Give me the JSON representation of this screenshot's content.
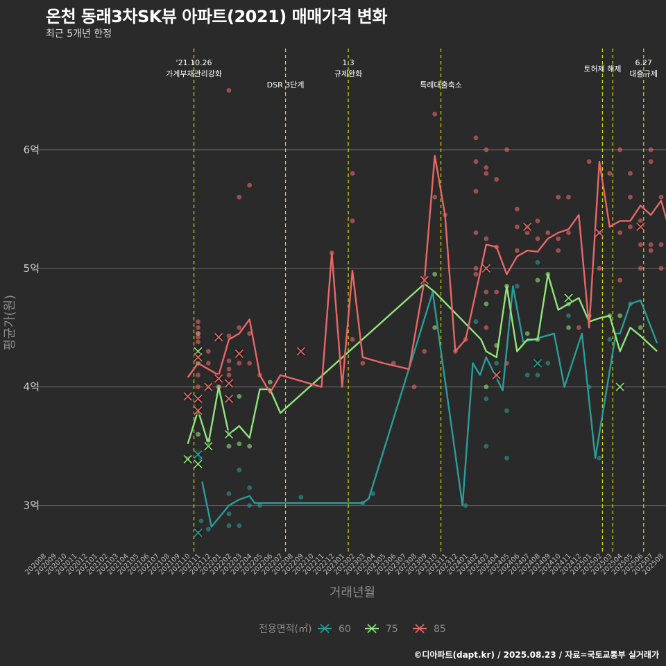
{
  "title": "온천 동래3차SK뷰 아파트(2021) 매매가격 변화",
  "subtitle": "최근 5개년 한정",
  "caption": "©디아파트(dapt.kr) / 2025.08.23 / 자료=국토교통부 실거래가",
  "chart_data": {
    "type": "line",
    "xlabel": "거래년월",
    "ylabel": "평균가(원)",
    "ylim": [
      2.6,
      6.9
    ],
    "yticks": [
      {
        "value": 3,
        "label": "3억"
      },
      {
        "value": 4,
        "label": "4억"
      },
      {
        "value": 5,
        "label": "5억"
      },
      {
        "value": 6,
        "label": "6억"
      }
    ],
    "x_categories": [
      "202008",
      "202009",
      "202010",
      "202011",
      "202012",
      "202101",
      "202102",
      "202103",
      "202104",
      "202105",
      "202106",
      "202107",
      "202108",
      "202109",
      "202110",
      "202111",
      "202112",
      "202201",
      "202202",
      "202203",
      "202204",
      "202205",
      "202206",
      "202207",
      "202208",
      "202209",
      "202210",
      "202211",
      "202212",
      "202301",
      "202302",
      "202303",
      "202304",
      "202305",
      "202306",
      "202307",
      "202308",
      "202309",
      "202310",
      "202311",
      "202312",
      "202401",
      "202402",
      "202403",
      "202404",
      "202405",
      "202406",
      "202407",
      "202408",
      "202409",
      "202410",
      "202411",
      "202412",
      "202501",
      "202502",
      "202503",
      "202504",
      "202505",
      "202506",
      "202507",
      "202508"
    ],
    "legend_title": "전용면적(㎡)",
    "legend_position": "bottom",
    "series": [
      {
        "name": "60",
        "color": "#2a9d98",
        "line": [
          [
            15.4,
            3.2
          ],
          [
            16.3,
            2.82
          ],
          [
            18.0,
            3.0
          ],
          [
            19.0,
            3.05
          ],
          [
            20.0,
            3.08
          ],
          [
            20.5,
            3.02
          ],
          [
            31.0,
            3.02
          ],
          [
            31.6,
            3.06
          ],
          [
            37.8,
            4.8
          ],
          [
            40.7,
            3.0
          ],
          [
            41.7,
            4.2
          ],
          [
            42.4,
            4.1
          ],
          [
            43.0,
            4.25
          ],
          [
            44.6,
            3.97
          ],
          [
            45.6,
            4.85
          ],
          [
            46.6,
            4.38
          ],
          [
            47.6,
            4.4
          ],
          [
            49.6,
            4.45
          ],
          [
            50.6,
            4.0
          ],
          [
            52.3,
            4.45
          ],
          [
            53.6,
            3.4
          ],
          [
            55.6,
            4.45
          ],
          [
            56.0,
            4.45
          ],
          [
            57.0,
            4.7
          ],
          [
            58.0,
            4.73
          ],
          [
            59.6,
            4.37
          ]
        ],
        "points": [
          [
            15.0,
            3.45
          ],
          [
            15.2,
            3.4
          ],
          [
            15.3,
            2.87
          ],
          [
            16.0,
            2.8
          ],
          [
            18.0,
            2.93
          ],
          [
            18.0,
            2.83
          ],
          [
            18.0,
            3.1
          ],
          [
            19.0,
            2.83
          ],
          [
            19.0,
            3.3
          ],
          [
            20.0,
            3.15
          ],
          [
            20.0,
            3.0
          ],
          [
            21.0,
            3.0
          ],
          [
            25.0,
            3.07
          ],
          [
            31.0,
            3.02
          ],
          [
            32.0,
            3.1
          ],
          [
            41.0,
            3.0
          ],
          [
            42.0,
            4.55
          ],
          [
            43.0,
            3.5
          ],
          [
            43.0,
            3.9
          ],
          [
            44.0,
            4.2
          ],
          [
            45.0,
            3.8
          ],
          [
            45.0,
            3.4
          ],
          [
            46.0,
            4.85
          ],
          [
            47.0,
            4.1
          ],
          [
            48.0,
            4.1
          ],
          [
            48.0,
            5.05
          ],
          [
            49.0,
            4.2
          ],
          [
            51.0,
            4.6
          ],
          [
            53.0,
            4.0
          ],
          [
            54.0,
            3.4
          ],
          [
            55.0,
            4.4
          ],
          [
            57.0,
            4.7
          ]
        ],
        "markers": [
          [
            15.0,
            2.77
          ],
          [
            15.0,
            3.43
          ],
          [
            48.0,
            4.2
          ]
        ]
      },
      {
        "name": "75",
        "color": "#90e67a",
        "line": [
          [
            14.0,
            3.52
          ],
          [
            15.0,
            3.8
          ],
          [
            16.0,
            3.52
          ],
          [
            17.0,
            4.0
          ],
          [
            18.0,
            3.6
          ],
          [
            19.0,
            3.67
          ],
          [
            20.0,
            3.57
          ],
          [
            21.0,
            3.98
          ],
          [
            22.0,
            3.98
          ],
          [
            23.0,
            3.78
          ],
          [
            37.0,
            4.87
          ],
          [
            38.0,
            4.8
          ],
          [
            42.5,
            4.4
          ],
          [
            43.0,
            4.3
          ],
          [
            44.0,
            4.25
          ],
          [
            45.0,
            4.85
          ],
          [
            46.0,
            4.3
          ],
          [
            47.0,
            4.4
          ],
          [
            48.0,
            4.4
          ],
          [
            49.0,
            4.95
          ],
          [
            50.0,
            4.65
          ],
          [
            51.0,
            4.7
          ],
          [
            52.0,
            4.75
          ],
          [
            53.0,
            4.55
          ],
          [
            54.0,
            4.58
          ],
          [
            55.0,
            4.6
          ],
          [
            56.0,
            4.3
          ],
          [
            57.0,
            4.5
          ],
          [
            58.0,
            4.43
          ],
          [
            59.6,
            4.3
          ]
        ],
        "points": [
          [
            14.0,
            3.4
          ],
          [
            15.0,
            4.45
          ],
          [
            15.0,
            4.2
          ],
          [
            15.0,
            3.6
          ],
          [
            16.0,
            3.55
          ],
          [
            17.0,
            4.0
          ],
          [
            18.0,
            3.6
          ],
          [
            18.0,
            3.5
          ],
          [
            19.0,
            3.92
          ],
          [
            19.0,
            3.52
          ],
          [
            20.0,
            3.5
          ],
          [
            22.0,
            4.04
          ],
          [
            37.0,
            4.92
          ],
          [
            38.0,
            4.5
          ],
          [
            38.0,
            4.95
          ],
          [
            43.0,
            4.7
          ],
          [
            43.0,
            4.0
          ],
          [
            44.0,
            4.35
          ],
          [
            45.0,
            4.85
          ],
          [
            47.0,
            4.45
          ],
          [
            48.0,
            4.9
          ],
          [
            48.0,
            4.4
          ],
          [
            49.0,
            4.95
          ],
          [
            51.0,
            4.7
          ],
          [
            51.0,
            4.5
          ],
          [
            53.0,
            4.6
          ],
          [
            55.0,
            4.6
          ],
          [
            56.0,
            4.6
          ],
          [
            58.0,
            4.5
          ]
        ],
        "markers": [
          [
            14.0,
            3.39
          ],
          [
            15.0,
            3.35
          ],
          [
            15.0,
            4.3
          ],
          [
            16.0,
            3.5
          ],
          [
            18.0,
            3.6
          ],
          [
            51.0,
            4.75
          ],
          [
            56.0,
            4.0
          ]
        ]
      },
      {
        "name": "85",
        "color": "#e96767",
        "line": [
          [
            14.0,
            4.08
          ],
          [
            15.0,
            4.2
          ],
          [
            16.0,
            4.15
          ],
          [
            17.0,
            4.1
          ],
          [
            18.0,
            4.4
          ],
          [
            19.0,
            4.45
          ],
          [
            20.0,
            4.57
          ],
          [
            21.0,
            4.1
          ],
          [
            22.0,
            3.95
          ],
          [
            23.0,
            4.1
          ],
          [
            27.0,
            4.0
          ],
          [
            28.0,
            5.13
          ],
          [
            29.0,
            4.0
          ],
          [
            30.0,
            4.98
          ],
          [
            31.0,
            4.25
          ],
          [
            33.0,
            4.2
          ],
          [
            35.5,
            4.15
          ],
          [
            37.0,
            4.9
          ],
          [
            38.0,
            5.95
          ],
          [
            39.0,
            5.45
          ],
          [
            40.0,
            4.3
          ],
          [
            41.0,
            4.4
          ],
          [
            43.0,
            5.2
          ],
          [
            44.0,
            5.18
          ],
          [
            45.0,
            4.95
          ],
          [
            46.0,
            5.1
          ],
          [
            47.0,
            5.15
          ],
          [
            48.0,
            5.14
          ],
          [
            49.0,
            5.25
          ],
          [
            50.0,
            5.3
          ],
          [
            51.0,
            5.33
          ],
          [
            52.0,
            5.45
          ],
          [
            53.0,
            4.5
          ],
          [
            54.0,
            5.9
          ],
          [
            55.0,
            5.35
          ],
          [
            56.0,
            5.4
          ],
          [
            57.0,
            5.4
          ],
          [
            58.0,
            5.53
          ],
          [
            59.0,
            5.45
          ],
          [
            60.0,
            5.57
          ],
          [
            61.0,
            5.27
          ]
        ],
        "points": [
          [
            15.0,
            4.55
          ],
          [
            15.0,
            4.5
          ],
          [
            15.0,
            4.45
          ],
          [
            15.0,
            4.42
          ],
          [
            15.0,
            4.38
          ],
          [
            15.0,
            4.1
          ],
          [
            15.0,
            4.0
          ],
          [
            16.0,
            4.2
          ],
          [
            16.0,
            4.0
          ],
          [
            16.0,
            4.3
          ],
          [
            17.0,
            4.0
          ],
          [
            18.0,
            4.43
          ],
          [
            18.0,
            4.22
          ],
          [
            18.0,
            4.15
          ],
          [
            18.0,
            4.1
          ],
          [
            18.0,
            6.5
          ],
          [
            19.0,
            4.5
          ],
          [
            19.0,
            4.2
          ],
          [
            19.0,
            5.6
          ],
          [
            20.0,
            4.45
          ],
          [
            20.0,
            4.2
          ],
          [
            20.0,
            5.7
          ],
          [
            21.0,
            4.1
          ],
          [
            28.0,
            5.13
          ],
          [
            30.0,
            5.8
          ],
          [
            30.0,
            5.4
          ],
          [
            30.0,
            4.4
          ],
          [
            31.0,
            4.2
          ],
          [
            34.0,
            4.2
          ],
          [
            36.0,
            4.0
          ],
          [
            37.0,
            4.3
          ],
          [
            38.0,
            5.6
          ],
          [
            38.0,
            6.3
          ],
          [
            39.0,
            5.45
          ],
          [
            40.0,
            4.3
          ],
          [
            41.0,
            4.4
          ],
          [
            42.0,
            6.1
          ],
          [
            42.0,
            5.9
          ],
          [
            42.0,
            5.65
          ],
          [
            42.0,
            5.3
          ],
          [
            42.0,
            5.0
          ],
          [
            42.0,
            4.95
          ],
          [
            43.0,
            6.0
          ],
          [
            43.0,
            5.85
          ],
          [
            43.0,
            5.8
          ],
          [
            43.0,
            5.25
          ],
          [
            43.0,
            4.8
          ],
          [
            43.0,
            4.5
          ],
          [
            44.0,
            5.75
          ],
          [
            44.0,
            5.18
          ],
          [
            44.0,
            4.8
          ],
          [
            45.0,
            6.0
          ],
          [
            45.0,
            4.2
          ],
          [
            46.0,
            5.5
          ],
          [
            46.0,
            5.35
          ],
          [
            46.0,
            5.15
          ],
          [
            47.0,
            5.35
          ],
          [
            47.0,
            5.3
          ],
          [
            48.0,
            5.4
          ],
          [
            48.0,
            5.25
          ],
          [
            49.0,
            5.3
          ],
          [
            50.0,
            5.6
          ],
          [
            50.0,
            5.25
          ],
          [
            50.0,
            5.15
          ],
          [
            51.0,
            5.6
          ],
          [
            51.0,
            5.3
          ],
          [
            52.0,
            4.5
          ],
          [
            53.0,
            5.9
          ],
          [
            54.0,
            5.3
          ],
          [
            54.0,
            5.0
          ],
          [
            55.0,
            5.8
          ],
          [
            56.0,
            6.0
          ],
          [
            56.0,
            5.3
          ],
          [
            56.0,
            4.9
          ],
          [
            57.0,
            5.6
          ],
          [
            57.0,
            5.35
          ],
          [
            57.0,
            5.8
          ],
          [
            58.0,
            5.2
          ],
          [
            58.0,
            5.0
          ],
          [
            58.0,
            5.4
          ],
          [
            59.0,
            5.9
          ],
          [
            59.0,
            6.0
          ],
          [
            59.0,
            5.2
          ],
          [
            59.0,
            5.15
          ],
          [
            60.0,
            5.6
          ],
          [
            60.0,
            5.2
          ],
          [
            60.0,
            5.0
          ]
        ],
        "markers": [
          [
            14.0,
            3.92
          ],
          [
            15.0,
            3.8
          ],
          [
            15.0,
            3.9
          ],
          [
            15.0,
            4.25
          ],
          [
            16.0,
            4.0
          ],
          [
            17.0,
            4.42
          ],
          [
            17.0,
            4.07
          ],
          [
            18.0,
            3.9
          ],
          [
            18.0,
            4.03
          ],
          [
            19.0,
            4.28
          ],
          [
            25.0,
            4.3
          ],
          [
            37.0,
            4.9
          ],
          [
            43.0,
            5.0
          ],
          [
            44.0,
            4.1
          ],
          [
            47.0,
            5.35
          ],
          [
            54.0,
            5.3
          ],
          [
            58.0,
            5.35
          ]
        ]
      }
    ],
    "annotations": [
      {
        "x": 14.6,
        "lines": [
          "'21.10.26",
          "가계부채관리강화"
        ]
      },
      {
        "x": 23.5,
        "lines": [
          "DSR 3단계"
        ]
      },
      {
        "x": 29.6,
        "lines": [
          "1.3",
          "규제완화"
        ]
      },
      {
        "x": 38.6,
        "lines": [
          "특례대출축소"
        ]
      },
      {
        "x": 54.3,
        "lines": [
          "토허제 해제"
        ]
      },
      {
        "x": 55.3,
        "lines": []
      },
      {
        "x": 58.3,
        "lines": [
          "6.27",
          "대출규제"
        ]
      }
    ]
  }
}
